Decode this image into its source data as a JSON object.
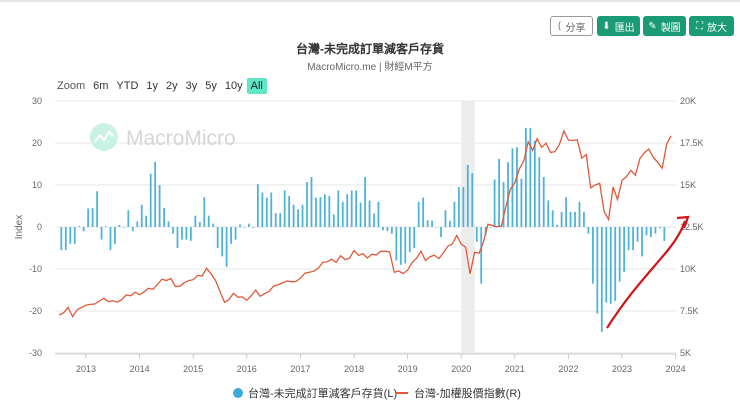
{
  "toolbar": {
    "share": "分享",
    "export": "匯出",
    "draw": "製圖",
    "expand": "放大"
  },
  "header": {
    "title": "台灣-未完成訂單減客戶存貨",
    "subtitle": "MacroMicro.me | 財經M平方"
  },
  "range_selector": {
    "label": "Zoom",
    "options": [
      "6m",
      "YTD",
      "1y",
      "2y",
      "3y",
      "5y",
      "10y",
      "All"
    ],
    "selected": "All"
  },
  "watermark": "MacroMicro",
  "colors": {
    "bars": "#4fb3d9",
    "line": "#e0583a",
    "button": "#1b9a76",
    "range_active": "#5ee6c6",
    "annotation": "#d0141a"
  },
  "chart_data": {
    "type": "bar+line",
    "title": "台灣-未完成訂單減客戶存貨",
    "ylabel": "Index",
    "ylim": [
      -30,
      30
    ],
    "y2lim": [
      5000,
      20000
    ],
    "yticks": [
      "30",
      "20",
      "10",
      "0",
      "-10",
      "-20",
      "-30"
    ],
    "y2ticks": [
      "20K",
      "17.5K",
      "15K",
      "12.5K",
      "10K",
      "7.5K",
      "5K"
    ],
    "xticks": [
      "2013",
      "2014",
      "2015",
      "2016",
      "2017",
      "2018",
      "2019",
      "2020",
      "2021",
      "2022",
      "2023",
      "2024"
    ],
    "grid": true,
    "legend_placement": "bottom",
    "shaded_period": [
      "2020-01",
      "2020-04"
    ],
    "series": [
      {
        "name": "台灣-未完成訂單減客戶存貨(L)",
        "type": "bar",
        "start": "2012-07",
        "frequency": "monthly",
        "values": [
          -5.5,
          -5.5,
          -4,
          -4,
          0.2,
          -1,
          4.4,
          4.5,
          8.5,
          -3,
          0.2,
          -5.5,
          -4,
          0.5,
          0,
          4,
          -1,
          1.3,
          5.3,
          2.7,
          12.7,
          15.5,
          10,
          4.5,
          1.3,
          -1.6,
          -5,
          -3,
          -3,
          -3.3,
          2.7,
          1.2,
          7.1,
          2.7,
          0.8,
          -5,
          -7,
          -9.5,
          -4,
          -3,
          0.6,
          0,
          0.8,
          -0.2,
          10.2,
          8.2,
          7,
          8.2,
          3.3,
          3.3,
          8.7,
          7.4,
          5.3,
          4.2,
          5.3,
          10.7,
          11.9,
          7,
          7.1,
          7.8,
          7.4,
          3,
          8.7,
          6,
          7.8,
          8.7,
          8.7,
          5.8,
          11.9,
          6.3,
          3.2,
          6,
          -0.8,
          -1,
          -1.6,
          -8,
          -9,
          -8.7,
          -6,
          -5,
          6,
          7,
          1.6,
          1.5,
          0,
          -2.4,
          4,
          1.5,
          6,
          9.5,
          9.5,
          14.8,
          12.8,
          -3.5,
          -13.5,
          -2,
          0,
          11.3,
          16.2,
          10.7,
          15.4,
          18.7,
          19,
          11.5,
          23.6,
          23.6,
          20.6,
          16.6,
          11.9,
          6.3,
          4,
          0.5,
          3.6,
          7.1,
          3.6,
          3.6,
          6,
          3.6,
          -1.6,
          -13.5,
          -20.6,
          -25,
          -18,
          -18.3,
          -17.6,
          -13,
          -10.7,
          -5.5,
          -5.5,
          -3.5,
          -7,
          -2,
          -2.4,
          -1.6,
          -0.3,
          -3.3
        ]
      },
      {
        "name": "台灣-加權股價指數(R)",
        "type": "line",
        "start": "2012-07",
        "frequency": "monthly",
        "values": [
          7270,
          7400,
          7715,
          7166,
          7580,
          7700,
          7850,
          7890,
          7918,
          8093,
          8254,
          8062,
          8107,
          8022,
          8173,
          8450,
          8406,
          8611,
          8462,
          8640,
          8849,
          8791,
          9075,
          9393,
          9315,
          9436,
          8966,
          8975,
          9187,
          9307,
          9361,
          9622,
          9586,
          10041,
          9701,
          9323,
          8665,
          8019,
          8181,
          8554,
          8320,
          8338,
          8145,
          8411,
          8744,
          8377,
          8535,
          8666,
          8984,
          9068,
          9166,
          9290,
          9240,
          9254,
          9448,
          9750,
          9812,
          9872,
          10041,
          10395,
          10427,
          10586,
          10384,
          10794,
          10560,
          10643,
          11104,
          10815,
          10919,
          10657,
          10875,
          10837,
          11057,
          11064,
          11006,
          9802,
          9888,
          9727,
          9932,
          10389,
          10641,
          11063,
          10498,
          10730,
          10823,
          10618,
          10956,
          11358,
          11489,
          11997,
          11495,
          11292,
          9708,
          10992,
          10942,
          11621,
          12665,
          12592,
          12516,
          12546,
          13722,
          14732,
          15138,
          15953,
          16431,
          17567,
          17068,
          17755,
          17247,
          17490,
          16934,
          16987,
          17428,
          18218,
          17674,
          17652,
          17693,
          16593,
          16807,
          14825,
          15000,
          15095,
          13424,
          12949,
          14880,
          14137,
          15265,
          15504,
          15868,
          15579,
          16579,
          16916,
          17145,
          16634,
          16353,
          16001,
          17433,
          17930
        ]
      }
    ]
  }
}
